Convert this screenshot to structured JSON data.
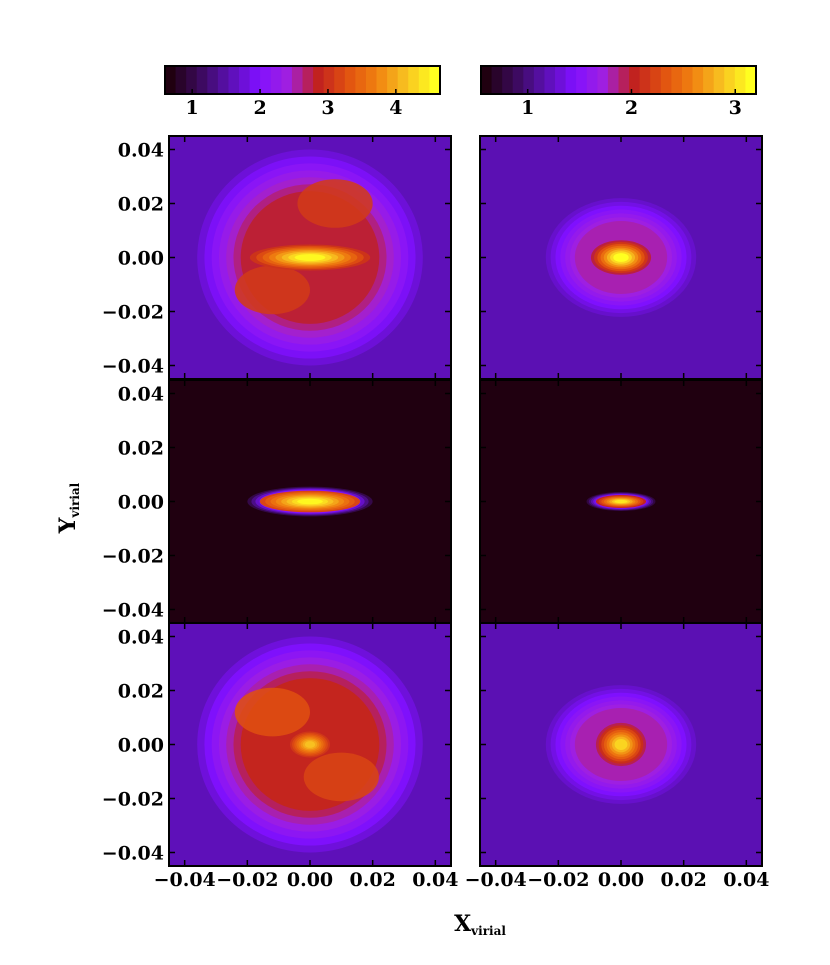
{
  "chart_data": {
    "type": "heatmap",
    "xlabel": "X",
    "xlabel_sub": "virial",
    "ylabel": "Y",
    "ylabel_sub": "virial",
    "xlim": [
      -0.045,
      0.045
    ],
    "ylim": [
      -0.045,
      0.045
    ],
    "x_ticks": [
      "−0.04",
      "−0.02",
      "0.00",
      "0.02",
      "0.04"
    ],
    "y_ticks": [
      "−0.04",
      "−0.02",
      "0.00",
      "0.02",
      "0.04"
    ],
    "grid": false,
    "colormap": [
      "#200010",
      "#3a0a5a",
      "#5a10b0",
      "#8010ff",
      "#a020e0",
      "#c02020",
      "#e05010",
      "#f08010",
      "#f8c020",
      "#ffff20"
    ],
    "colorbars": [
      {
        "column": "left",
        "range": [
          0.6,
          4.65
        ],
        "ticks": [
          1,
          2,
          3,
          4
        ],
        "tick_labels": [
          "1",
          "2",
          "3",
          "4"
        ]
      },
      {
        "column": "right",
        "range": [
          0.55,
          3.2
        ],
        "ticks": [
          1,
          2,
          3
        ],
        "tick_labels": [
          "1",
          "2",
          "3"
        ]
      }
    ],
    "panels": [
      {
        "row": 0,
        "col": 0,
        "background": 1.55,
        "peak": 4.6,
        "halo": {
          "level": 2.8,
          "rx": 0.036,
          "ry": 0.04
        },
        "core": {
          "rx": 0.012,
          "ry": 0.003
        },
        "sub": [
          {
            "x": -0.012,
            "y": -0.012,
            "level": 3.1
          },
          {
            "x": 0.008,
            "y": 0.02,
            "level": 3.1
          }
        ]
      },
      {
        "row": 0,
        "col": 1,
        "background": 1.15,
        "peak": 3.2,
        "halo": {
          "level": 1.8,
          "rx": 0.024,
          "ry": 0.022
        },
        "core": {
          "rx": 0.006,
          "ry": 0.004
        },
        "sub": []
      },
      {
        "row": 1,
        "col": 0,
        "background": 0.6,
        "peak": 4.6,
        "halo": {
          "level": 3.0,
          "rx": 0.02,
          "ry": 0.0055
        },
        "core": {
          "rx": 0.01,
          "ry": 0.0025
        },
        "sub": []
      },
      {
        "row": 1,
        "col": 1,
        "background": 0.55,
        "peak": 3.1,
        "halo": {
          "level": 1.9,
          "rx": 0.011,
          "ry": 0.0035
        },
        "core": {
          "rx": 0.005,
          "ry": 0.0015
        },
        "sub": []
      },
      {
        "row": 2,
        "col": 0,
        "background": 1.55,
        "peak": 4.2,
        "halo": {
          "level": 2.9,
          "rx": 0.036,
          "ry": 0.04
        },
        "core": {
          "rx": 0.004,
          "ry": 0.003
        },
        "sub": [
          {
            "x": -0.012,
            "y": 0.012,
            "level": 3.3
          },
          {
            "x": 0.01,
            "y": -0.012,
            "level": 3.2
          }
        ]
      },
      {
        "row": 2,
        "col": 1,
        "background": 1.15,
        "peak": 3.0,
        "halo": {
          "level": 1.8,
          "rx": 0.024,
          "ry": 0.022
        },
        "core": {
          "rx": 0.005,
          "ry": 0.005
        },
        "sub": []
      }
    ]
  }
}
